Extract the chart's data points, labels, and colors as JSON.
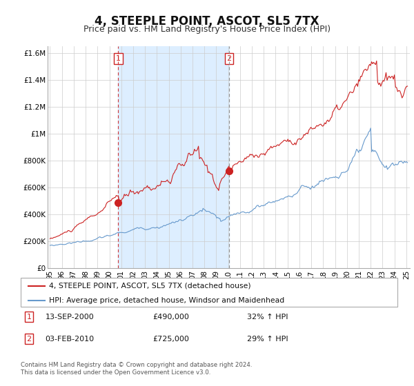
{
  "title": "4, STEEPLE POINT, ASCOT, SL5 7TX",
  "subtitle": "Price paid vs. HM Land Registry's House Price Index (HPI)",
  "title_fontsize": 12,
  "subtitle_fontsize": 9,
  "sale1_label": "1",
  "sale1_date": "13-SEP-2000",
  "sale1_price": "£490,000",
  "sale1_hpi": "32% ↑ HPI",
  "sale2_label": "2",
  "sale2_date": "03-FEB-2010",
  "sale2_price": "£725,000",
  "sale2_hpi": "29% ↑ HPI",
  "legend_property": "4, STEEPLE POINT, ASCOT, SL5 7TX (detached house)",
  "legend_hpi": "HPI: Average price, detached house, Windsor and Maidenhead",
  "footer1": "Contains HM Land Registry data © Crown copyright and database right 2024.",
  "footer2": "This data is licensed under the Open Government Licence v3.0.",
  "property_color": "#cc2222",
  "hpi_color": "#6699cc",
  "shade_color": "#ddeeff",
  "annotation_box_color": "#cc2222",
  "background_color": "#ffffff",
  "grid_color": "#cccccc",
  "ylim": [
    0,
    1650000
  ],
  "yticks": [
    0,
    200000,
    400000,
    600000,
    800000,
    1000000,
    1200000,
    1400000,
    1600000
  ],
  "ytick_labels": [
    "£0",
    "£200K",
    "£400K",
    "£600K",
    "£800K",
    "£1M",
    "£1.2M",
    "£1.4M",
    "£1.6M"
  ],
  "sale1_x": 2000.75,
  "sale1_y": 490000,
  "sale2_x": 2010.08,
  "sale2_y": 725000,
  "vline1_x": 2000.75,
  "vline2_x": 2010.08,
  "xlim": [
    1994.8,
    2025.3
  ],
  "xticks": [
    1995,
    1996,
    1997,
    1998,
    1999,
    2000,
    2001,
    2002,
    2003,
    2004,
    2005,
    2006,
    2007,
    2008,
    2009,
    2010,
    2011,
    2012,
    2013,
    2014,
    2015,
    2016,
    2017,
    2018,
    2019,
    2020,
    2021,
    2022,
    2023,
    2024,
    2025
  ]
}
